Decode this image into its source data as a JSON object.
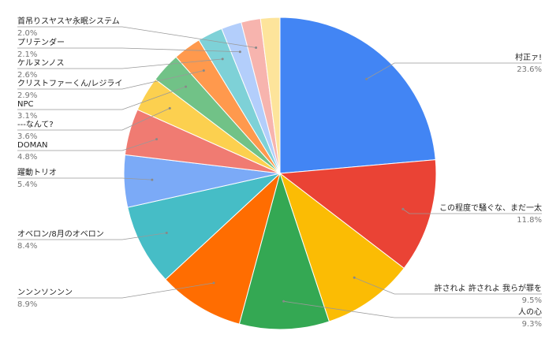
{
  "chart_data": {
    "type": "pie",
    "categories": [
      "村正ァ!",
      "この程度で騒ぐな、まだ一太",
      "許されよ 許されよ 我らが罪を",
      "人の心",
      "ンンンソンンン",
      "オベロン/8月のオベロン",
      "躍動トリオ",
      "DOMAN",
      "---なんて?",
      "NPC",
      "クリストファーくん/レジライ",
      "ケルヌンノス",
      "プリテンダー",
      "首吊りスヤスヤ永眠システム",
      null
    ],
    "values": [
      23.6,
      11.8,
      9.5,
      9.3,
      8.9,
      8.4,
      5.4,
      4.8,
      3.6,
      3.1,
      2.9,
      2.6,
      2.1,
      2.0,
      2.0
    ],
    "value_labels": [
      "23.6%",
      "11.8%",
      "9.5%",
      "9.3%",
      "8.9%",
      "8.4%",
      "5.4%",
      "4.8%",
      "3.6%",
      "3.1%",
      "2.9%",
      "2.6%",
      "2.1%",
      "2.0%",
      null
    ],
    "colors": [
      "#4285f4",
      "#ea4335",
      "#fbbc04",
      "#34a853",
      "#ff6d01",
      "#46bdc6",
      "#7baaf7",
      "#f07b72",
      "#fcd04f",
      "#71c287",
      "#ff994d",
      "#7ed1d7",
      "#b3cefb",
      "#f7b4ae",
      "#fde49b"
    ]
  }
}
